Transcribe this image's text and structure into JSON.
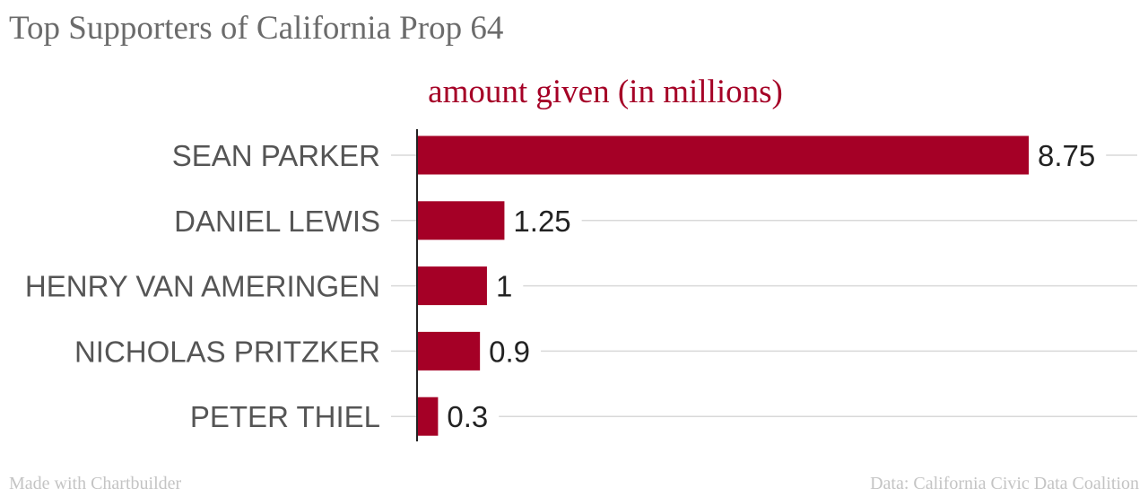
{
  "chart_data": {
    "type": "bar",
    "orientation": "horizontal",
    "title": "Top Supporters of California Prop 64",
    "series": [
      {
        "name": "amount given (in millions)",
        "values": [
          8.75,
          1.25,
          1,
          0.9,
          0.3
        ]
      }
    ],
    "categories": [
      "SEAN PARKER",
      "DANIEL LEWIS",
      "HENRY VAN AMERINGEN",
      "NICHOLAS PRITZKER",
      "PETER THIEL"
    ],
    "value_labels": [
      "8.75",
      "1.25",
      "1",
      "0.9",
      "0.3"
    ],
    "xlim": [
      0,
      10
    ],
    "grid": true,
    "legend": "top-center",
    "colors": {
      "bar": "#a50026",
      "series_title": "#a50026",
      "axis": "#222222",
      "grid": "#d9d9d9",
      "labels": "#555555"
    }
  },
  "footer": {
    "left": "Made with Chartbuilder",
    "right": "Data: California Civic Data Coalition"
  }
}
